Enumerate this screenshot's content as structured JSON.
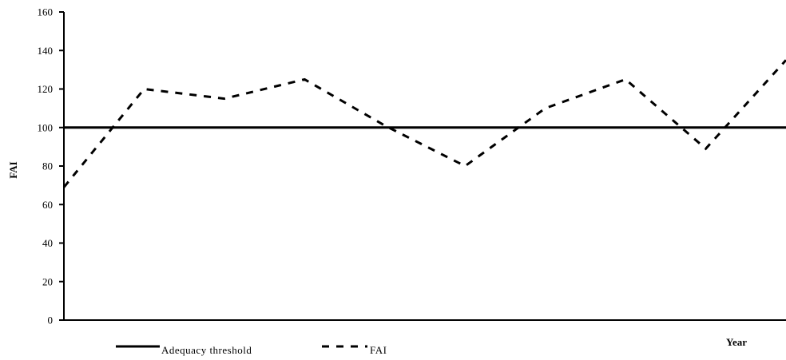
{
  "chart_data": {
    "type": "line",
    "xlabel": "Year",
    "ylabel": "FAI",
    "ylim": [
      0,
      160
    ],
    "yticks": [
      0,
      20,
      40,
      60,
      80,
      100,
      120,
      140,
      160
    ],
    "grid": false,
    "legend_position": "bottom-left",
    "series": [
      {
        "name": "Adequacy threshold",
        "style": "solid",
        "color": "#000000",
        "x": [
          0,
          9
        ],
        "values": [
          100,
          100
        ]
      },
      {
        "name": "FAI",
        "style": "dashed",
        "color": "#000000",
        "x": [
          0,
          1,
          2,
          3,
          4,
          5,
          6,
          7,
          8,
          9
        ],
        "values": [
          69,
          120,
          115,
          125,
          101,
          80,
          110,
          125,
          89,
          135
        ]
      }
    ]
  }
}
